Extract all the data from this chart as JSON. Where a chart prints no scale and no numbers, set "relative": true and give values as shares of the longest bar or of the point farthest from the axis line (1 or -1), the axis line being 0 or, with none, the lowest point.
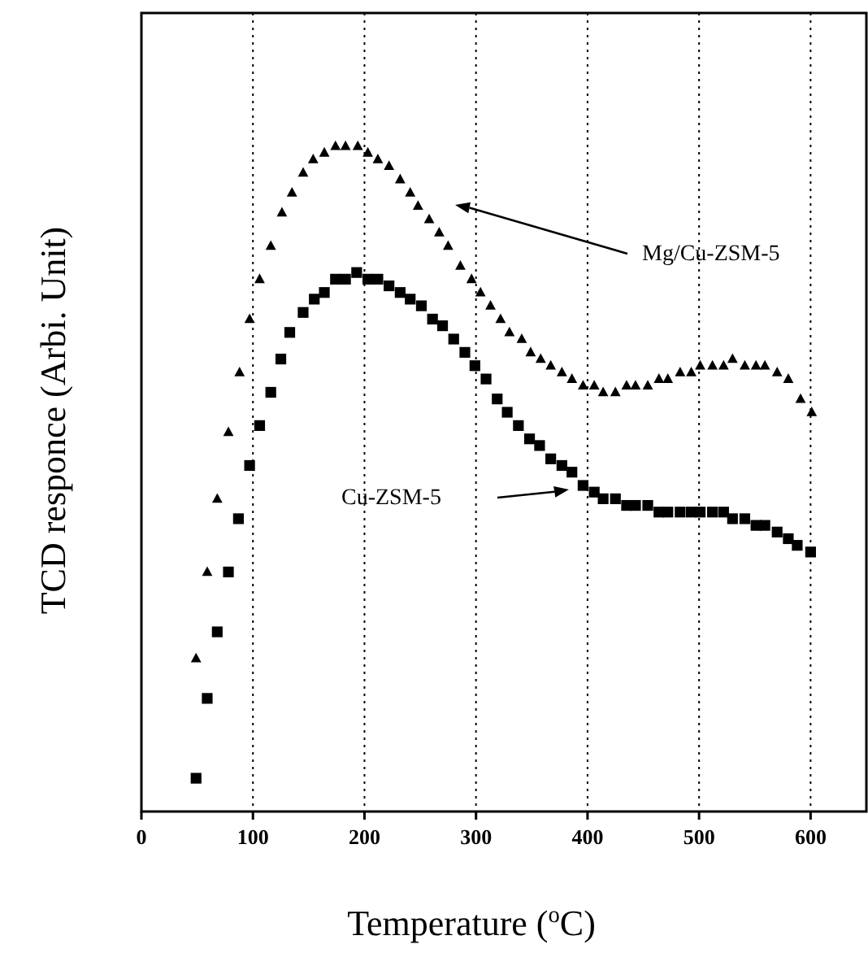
{
  "chart_data": {
    "type": "scatter",
    "relative": true,
    "xlabel": "Temperature ($^{o}$C)",
    "ylabel": "TCD responce (Arbi. Unit)",
    "xlim": [
      0,
      650
    ],
    "xticks": [
      0,
      100,
      200,
      300,
      400,
      500,
      600
    ],
    "grid": "x",
    "series": [
      {
        "color": "#000000",
        "marker": "triangle",
        "x": [
          49,
          59,
          68,
          78,
          88,
          97,
          106,
          116,
          126,
          135,
          145,
          154,
          164,
          174,
          183,
          194,
          203,
          212,
          222,
          232,
          241,
          248,
          258,
          267,
          275,
          286,
          296,
          304,
          313,
          322,
          330,
          341,
          349,
          358,
          367,
          377,
          386,
          396,
          406,
          414,
          425,
          435,
          443,
          454,
          464,
          472,
          483,
          493,
          501,
          512,
          522,
          530,
          541,
          551,
          559,
          570,
          580,
          591,
          601
        ],
        "values": [
          0.23,
          0.36,
          0.47,
          0.57,
          0.66,
          0.74,
          0.8,
          0.85,
          0.9,
          0.93,
          0.96,
          0.98,
          0.99,
          1.0,
          1.0,
          1.0,
          0.99,
          0.98,
          0.97,
          0.95,
          0.93,
          0.91,
          0.89,
          0.87,
          0.85,
          0.82,
          0.8,
          0.78,
          0.76,
          0.74,
          0.72,
          0.71,
          0.69,
          0.68,
          0.67,
          0.66,
          0.65,
          0.64,
          0.64,
          0.63,
          0.63,
          0.64,
          0.64,
          0.64,
          0.65,
          0.65,
          0.66,
          0.66,
          0.67,
          0.67,
          0.67,
          0.68,
          0.67,
          0.67,
          0.67,
          0.66,
          0.65,
          0.62,
          0.6
        ]
      },
      {
        "color": "#000000",
        "marker": "square",
        "x": [
          49,
          59,
          68,
          78,
          87,
          97,
          106,
          116,
          125,
          133,
          145,
          155,
          164,
          174,
          183,
          193,
          203,
          212,
          222,
          232,
          241,
          251,
          261,
          270,
          280,
          290,
          299,
          309,
          319,
          328,
          338,
          348,
          357,
          367,
          377,
          386,
          396,
          406,
          414,
          425,
          435,
          443,
          454,
          464,
          472,
          483,
          493,
          501,
          512,
          522,
          530,
          541,
          551,
          559,
          570,
          580,
          588,
          600
        ],
        "values": [
          0.05,
          0.17,
          0.27,
          0.36,
          0.44,
          0.52,
          0.58,
          0.63,
          0.68,
          0.72,
          0.75,
          0.77,
          0.78,
          0.8,
          0.8,
          0.81,
          0.8,
          0.8,
          0.79,
          0.78,
          0.77,
          0.76,
          0.74,
          0.73,
          0.71,
          0.69,
          0.67,
          0.65,
          0.62,
          0.6,
          0.58,
          0.56,
          0.55,
          0.53,
          0.52,
          0.51,
          0.49,
          0.48,
          0.47,
          0.47,
          0.46,
          0.46,
          0.46,
          0.45,
          0.45,
          0.45,
          0.45,
          0.45,
          0.45,
          0.45,
          0.44,
          0.44,
          0.43,
          0.43,
          0.42,
          0.41,
          0.4,
          0.39
        ]
      }
    ],
    "annotations": [
      "Mg/Cu-ZSM-5",
      "Cu-ZSM-5"
    ]
  }
}
